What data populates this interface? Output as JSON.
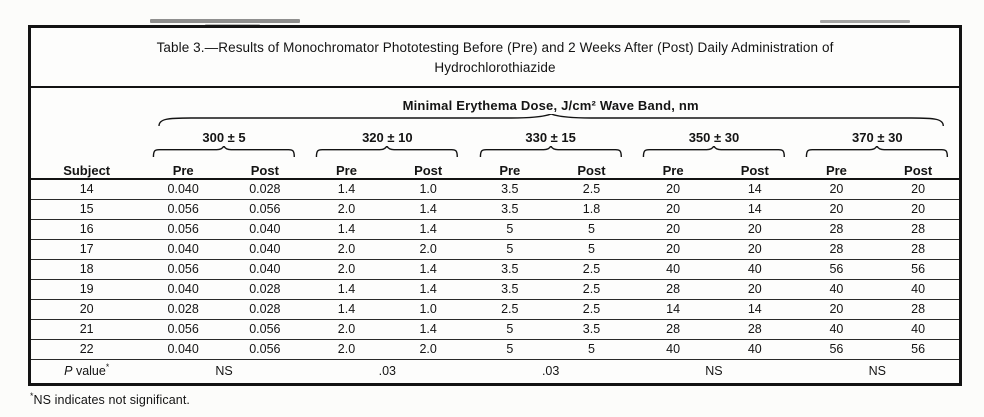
{
  "table": {
    "title_line1": "Table 3.—Results of Monochromator Phototesting Before (Pre) and 2 Weeks After (Post) Daily Administration of",
    "title_line2": "Hydrochlorothiazide",
    "spanner": "Minimal Erythema Dose, J/cm² Wave Band, nm",
    "subject_header": "Subject",
    "wave_bands": [
      "300 ± 5",
      "320 ± 10",
      "330 ± 15",
      "350 ± 30",
      "370 ± 30"
    ],
    "pre_label": "Pre",
    "post_label": "Post",
    "rows": [
      {
        "subject": "14",
        "values": [
          "0.040",
          "0.028",
          "1.4",
          "1.0",
          "3.5",
          "2.5",
          "20",
          "14",
          "20",
          "20"
        ]
      },
      {
        "subject": "15",
        "values": [
          "0.056",
          "0.056",
          "2.0",
          "1.4",
          "3.5",
          "1.8",
          "20",
          "14",
          "20",
          "20"
        ]
      },
      {
        "subject": "16",
        "values": [
          "0.056",
          "0.040",
          "1.4",
          "1.4",
          "5",
          "5",
          "20",
          "20",
          "28",
          "28"
        ]
      },
      {
        "subject": "17",
        "values": [
          "0.040",
          "0.040",
          "2.0",
          "2.0",
          "5",
          "5",
          "20",
          "20",
          "28",
          "28"
        ]
      },
      {
        "subject": "18",
        "values": [
          "0.056",
          "0.040",
          "2.0",
          "1.4",
          "3.5",
          "2.5",
          "40",
          "40",
          "56",
          "56"
        ]
      },
      {
        "subject": "19",
        "values": [
          "0.040",
          "0.028",
          "1.4",
          "1.4",
          "3.5",
          "2.5",
          "28",
          "20",
          "40",
          "40"
        ]
      },
      {
        "subject": "20",
        "values": [
          "0.028",
          "0.028",
          "1.4",
          "1.0",
          "2.5",
          "2.5",
          "14",
          "14",
          "20",
          "28"
        ]
      },
      {
        "subject": "21",
        "values": [
          "0.056",
          "0.056",
          "2.0",
          "1.4",
          "5",
          "3.5",
          "28",
          "28",
          "40",
          "40"
        ]
      },
      {
        "subject": "22",
        "values": [
          "0.040",
          "0.056",
          "2.0",
          "2.0",
          "5",
          "5",
          "40",
          "40",
          "56",
          "56"
        ]
      }
    ],
    "p_row": {
      "p": "P",
      "label": " value",
      "asterisk": "*",
      "values": [
        "NS",
        ".03",
        ".03",
        "NS",
        "NS"
      ]
    },
    "footnote": {
      "asterisk": "*",
      "text": "NS indicates not significant."
    }
  },
  "colors": {
    "ink": "#131313",
    "paper": "#fdfdfc"
  }
}
